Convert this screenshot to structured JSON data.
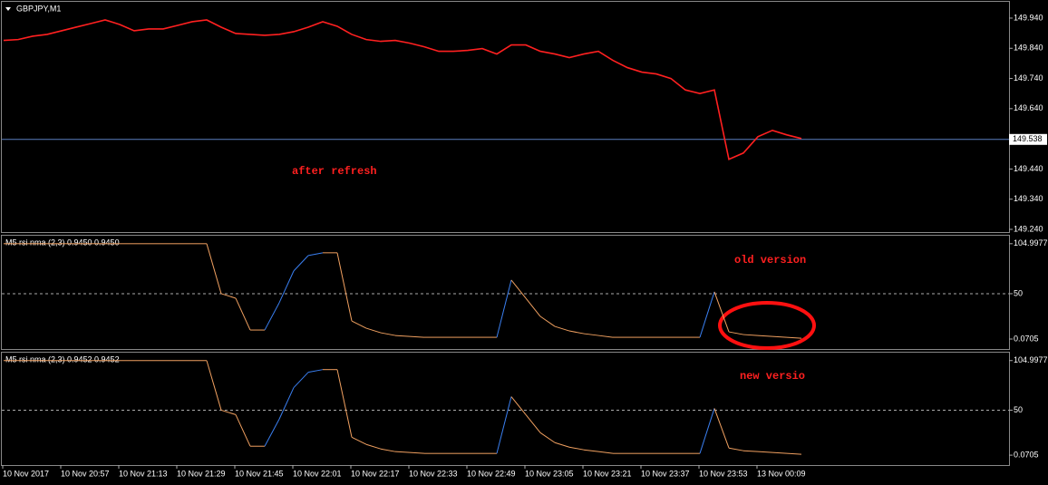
{
  "chart_data": [
    {
      "type": "line",
      "title": "GBPJPY,M1",
      "annotation": "after refresh",
      "color": "#ff2020",
      "ylim": [
        149.231,
        149.994
      ],
      "yticks": [
        {
          "value": 149.94,
          "label": "149.940"
        },
        {
          "value": 149.84,
          "label": "149.840"
        },
        {
          "value": 149.74,
          "label": "149.740"
        },
        {
          "value": 149.64,
          "label": "149.640"
        },
        {
          "value": 149.44,
          "label": "149.440"
        },
        {
          "value": 149.34,
          "label": "149.340"
        },
        {
          "value": 149.24,
          "label": "149.240"
        }
      ],
      "current_price": 149.538,
      "values": [
        149.866,
        149.869,
        149.88,
        149.886,
        149.898,
        149.91,
        149.922,
        149.934,
        149.919,
        149.898,
        149.904,
        149.904,
        149.916,
        149.928,
        149.934,
        149.91,
        149.889,
        149.886,
        149.883,
        149.886,
        149.895,
        149.91,
        149.928,
        149.913,
        149.886,
        149.869,
        149.863,
        149.866,
        149.857,
        149.845,
        149.83,
        149.83,
        149.833,
        149.839,
        149.821,
        149.851,
        149.851,
        149.83,
        149.821,
        149.809,
        149.821,
        149.83,
        149.8,
        149.776,
        149.761,
        149.755,
        149.74,
        149.702,
        149.69,
        149.702,
        149.472,
        149.493,
        149.547,
        149.568,
        149.553,
        149.541
      ]
    },
    {
      "type": "line",
      "title": "M5 rsi nma (2,3) 0.9450 0.9450",
      "annotation": "old version",
      "ylim": [
        -10.9,
        113.8
      ],
      "yticks": [
        104.9977,
        50,
        0.0705
      ],
      "level": 50,
      "values": [
        105,
        105,
        105,
        105,
        105,
        105,
        105,
        105,
        105,
        105,
        105,
        105,
        105,
        105,
        105,
        50,
        45,
        10,
        10,
        40,
        75,
        92,
        95,
        95,
        20,
        12,
        7,
        4,
        3,
        2,
        2,
        2,
        2,
        2,
        2,
        65,
        45,
        25,
        14,
        9,
        6,
        4,
        2,
        2,
        2,
        2,
        2,
        2,
        2,
        52,
        8,
        5,
        4,
        3,
        2,
        1
      ]
    },
    {
      "type": "line",
      "title": "M5 rsi nma (2,3) 0.9452 0.9452",
      "annotation": "new versio",
      "ylim": [
        -10.9,
        113.8
      ],
      "yticks": [
        104.9977,
        50,
        0.0705
      ],
      "level": 50,
      "values": [
        105,
        105,
        105,
        105,
        105,
        105,
        105,
        105,
        105,
        105,
        105,
        105,
        105,
        105,
        105,
        50,
        45,
        10,
        10,
        40,
        75,
        92,
        95,
        95,
        20,
        12,
        7,
        4,
        3,
        2,
        2,
        2,
        2,
        2,
        2,
        65,
        45,
        25,
        14,
        9,
        6,
        4,
        2,
        2,
        2,
        2,
        2,
        2,
        2,
        52,
        8,
        5,
        4,
        3,
        2,
        1
      ]
    }
  ],
  "time_axis": [
    "10 Nov 2017",
    "10 Nov 20:57",
    "10 Nov 21:13",
    "10 Nov 21:29",
    "10 Nov 21:45",
    "10 Nov 22:01",
    "10 Nov 22:17",
    "10 Nov 22:33",
    "10 Nov 22:49",
    "10 Nov 23:05",
    "10 Nov 23:21",
    "10 Nov 23:37",
    "10 Nov 23:53",
    "13 Nov 00:09"
  ]
}
